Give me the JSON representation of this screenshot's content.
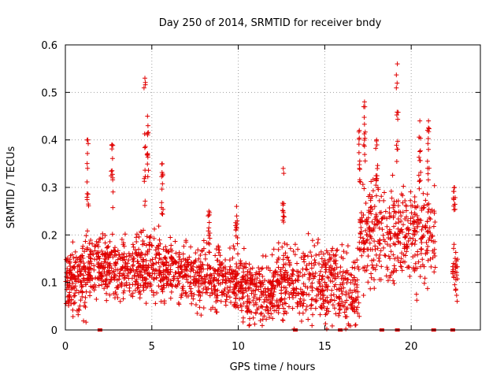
{
  "chart_data": {
    "type": "scatter",
    "title": "Day 250 of 2014, SRMTID for receiver bndy",
    "xlabel": "GPS time / hours",
    "ylabel": "SRMTID / TECUs",
    "xlim": [
      0,
      24
    ],
    "ylim": [
      0,
      0.6
    ],
    "xticks": [
      0,
      5,
      10,
      15,
      20
    ],
    "xtick_labels": [
      "0",
      "5",
      "10",
      "15",
      "20"
    ],
    "yticks": [
      0,
      0.1,
      0.2,
      0.3,
      0.4,
      0.5,
      0.6
    ],
    "ytick_labels": [
      "0",
      "0.1",
      "0.2",
      "0.3",
      "0.4",
      "0.5",
      "0.6"
    ],
    "grid": true,
    "marker": "+",
    "series_color": "#e00000",
    "segments": [
      {
        "x0": 0.0,
        "x1": 1.2,
        "base": 0.11,
        "spread": 0.07,
        "n": 150
      },
      {
        "x0": 1.2,
        "x1": 2.3,
        "base": 0.14,
        "spread": 0.06,
        "n": 120
      },
      {
        "x0": 2.3,
        "x1": 4.3,
        "base": 0.13,
        "spread": 0.06,
        "n": 200
      },
      {
        "x0": 4.3,
        "x1": 5.5,
        "base": 0.14,
        "spread": 0.07,
        "n": 130
      },
      {
        "x0": 5.5,
        "x1": 7.2,
        "base": 0.12,
        "spread": 0.06,
        "n": 170
      },
      {
        "x0": 7.2,
        "x1": 9.0,
        "base": 0.11,
        "spread": 0.06,
        "n": 170
      },
      {
        "x0": 9.0,
        "x1": 10.5,
        "base": 0.1,
        "spread": 0.06,
        "n": 150
      },
      {
        "x0": 10.5,
        "x1": 12.0,
        "base": 0.08,
        "spread": 0.06,
        "n": 160
      },
      {
        "x0": 12.0,
        "x1": 14.0,
        "base": 0.1,
        "spread": 0.07,
        "n": 190
      },
      {
        "x0": 14.0,
        "x1": 16.0,
        "base": 0.1,
        "spread": 0.08,
        "n": 190
      },
      {
        "x0": 16.0,
        "x1": 17.0,
        "base": 0.08,
        "spread": 0.07,
        "n": 90
      },
      {
        "x0": 17.0,
        "x1": 19.0,
        "base": 0.2,
        "spread": 0.1,
        "n": 190
      },
      {
        "x0": 19.0,
        "x1": 21.0,
        "base": 0.2,
        "spread": 0.1,
        "n": 190
      },
      {
        "x0": 21.0,
        "x1": 21.4,
        "base": 0.2,
        "spread": 0.08,
        "n": 30
      },
      {
        "x0": 22.4,
        "x1": 22.7,
        "base": 0.12,
        "spread": 0.06,
        "n": 30
      }
    ],
    "spikes": [
      {
        "x": 1.3,
        "ymin": 0.25,
        "ymax": 0.4
      },
      {
        "x": 2.7,
        "ymin": 0.25,
        "ymax": 0.39
      },
      {
        "x": 4.6,
        "ymin": 0.26,
        "ymax": 0.53
      },
      {
        "x": 4.75,
        "ymin": 0.3,
        "ymax": 0.45
      },
      {
        "x": 5.6,
        "ymin": 0.22,
        "ymax": 0.35
      },
      {
        "x": 8.3,
        "ymin": 0.18,
        "ymax": 0.25
      },
      {
        "x": 9.9,
        "ymin": 0.18,
        "ymax": 0.26
      },
      {
        "x": 12.6,
        "ymin": 0.22,
        "ymax": 0.34
      },
      {
        "x": 17.0,
        "ymin": 0.3,
        "ymax": 0.42
      },
      {
        "x": 17.3,
        "ymin": 0.35,
        "ymax": 0.48
      },
      {
        "x": 18.0,
        "ymin": 0.3,
        "ymax": 0.4
      },
      {
        "x": 19.2,
        "ymin": 0.35,
        "ymax": 0.56
      },
      {
        "x": 20.5,
        "ymin": 0.3,
        "ymax": 0.44
      },
      {
        "x": 21.0,
        "ymin": 0.3,
        "ymax": 0.44
      },
      {
        "x": 22.5,
        "ymin": 0.22,
        "ymax": 0.3
      }
    ],
    "zero_markers": [
      2.0,
      13.3,
      15.9,
      18.3,
      19.2,
      21.3,
      22.4
    ],
    "notes": "Dense scatter of several thousand '+' markers; individual values approximated per time segment."
  }
}
